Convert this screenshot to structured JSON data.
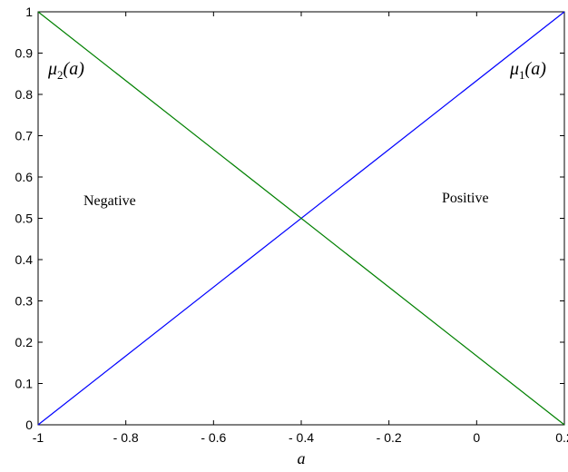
{
  "chart_data": {
    "type": "line",
    "xlabel": "a",
    "xlim": [
      -1,
      0.2
    ],
    "ylim": [
      0,
      1
    ],
    "x_ticks": [
      -1,
      -0.8,
      -0.6,
      -0.4,
      -0.2,
      0,
      0.2
    ],
    "x_tick_labels": [
      "-1",
      "- 0.8",
      "- 0.6",
      "- 0.4",
      "- 0.2",
      "0",
      "0.2"
    ],
    "y_ticks": [
      0,
      0.1,
      0.2,
      0.3,
      0.4,
      0.5,
      0.6,
      0.7,
      0.8,
      0.9,
      1
    ],
    "y_tick_labels": [
      "0",
      "0.1",
      "0.2",
      "0.3",
      "0.4",
      "0.5",
      "0.6",
      "0.7",
      "0.8",
      "0.9",
      "1"
    ],
    "grid": false,
    "series": [
      {
        "name": "μ1(a)",
        "color": "#0000ff",
        "x": [
          -1,
          0.2
        ],
        "y": [
          0,
          1
        ]
      },
      {
        "name": "μ2(a)",
        "color": "#008000",
        "x": [
          -1,
          0.2
        ],
        "y": [
          1,
          0
        ]
      }
    ],
    "annotations": {
      "mu1": {
        "symbol": "μ",
        "sub": "1",
        "arg": "(a)"
      },
      "mu2": {
        "symbol": "μ",
        "sub": "2",
        "arg": "(a)"
      },
      "negative": "Negative",
      "positive": "Positive"
    }
  }
}
